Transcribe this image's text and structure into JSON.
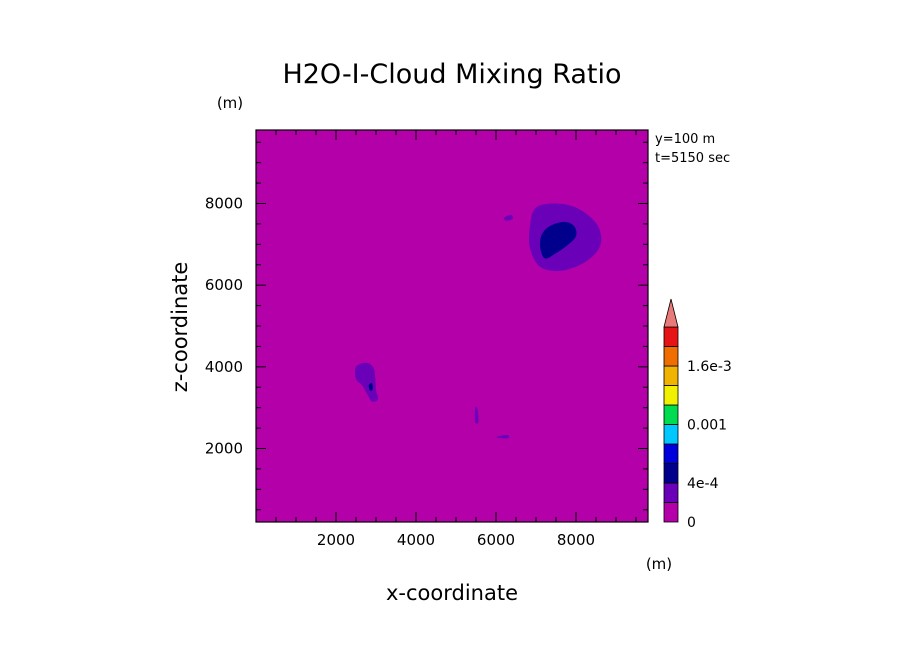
{
  "chart_data": {
    "type": "heatmap",
    "title": "H2O-I-Cloud Mixing Ratio",
    "xlabel": "x-coordinate",
    "ylabel": "z-coordinate",
    "x_unit": "(m)",
    "y_unit": "(m)",
    "annotation_y": "y=100 m",
    "annotation_t": "t=5150 sec",
    "xlim": [
      0,
      9800
    ],
    "ylim": [
      200,
      9800
    ],
    "x_ticks": [
      2000,
      4000,
      6000,
      8000
    ],
    "y_ticks": [
      2000,
      4000,
      6000,
      8000
    ],
    "x_tick_labels": [
      "2000",
      "4000",
      "6000",
      "8000"
    ],
    "y_tick_labels": [
      "2000",
      "4000",
      "6000",
      "8000"
    ],
    "colorbar": {
      "levels": [
        0,
        0.0002,
        0.0004,
        0.0006,
        0.0008,
        0.001,
        0.0012,
        0.0014,
        0.0016,
        0.0018,
        0.002
      ],
      "tick_labels": [
        {
          "value": 0,
          "label": "0"
        },
        {
          "value": 0.0004,
          "label": "4e-4"
        },
        {
          "value": 0.001,
          "label": "0.001"
        },
        {
          "value": 0.0016,
          "label": "1.6e-3"
        }
      ],
      "colors": [
        "#b400a8",
        "#6a00b8",
        "#00008c",
        "#0000dc",
        "#00c8ff",
        "#00dc50",
        "#f0f000",
        "#f0b400",
        "#f06e00",
        "#e61414"
      ],
      "extend_color": "#e87a7a"
    },
    "background_color": "#b400a8",
    "contours": [
      {
        "level": 0.0001,
        "color": "#6a00b8",
        "points": [
          [
            7000,
            7900
          ],
          [
            7550,
            8000
          ],
          [
            8100,
            7850
          ],
          [
            8550,
            7450
          ],
          [
            8600,
            6950
          ],
          [
            8200,
            6550
          ],
          [
            7600,
            6350
          ],
          [
            7100,
            6450
          ],
          [
            6850,
            6900
          ],
          [
            6850,
            7450
          ]
        ]
      },
      {
        "level": 0.0003,
        "color": "#00008c",
        "points": [
          [
            7150,
            7250
          ],
          [
            7350,
            7450
          ],
          [
            7700,
            7550
          ],
          [
            7950,
            7450
          ],
          [
            8000,
            7200
          ],
          [
            7750,
            6950
          ],
          [
            7450,
            6750
          ],
          [
            7250,
            6650
          ],
          [
            7150,
            6750
          ],
          [
            7100,
            7000
          ]
        ]
      },
      {
        "level": 0.0001,
        "color": "#6a00b8",
        "points": [
          [
            2500,
            4000
          ],
          [
            2750,
            4100
          ],
          [
            2950,
            3950
          ],
          [
            3000,
            3450
          ],
          [
            3050,
            3200
          ],
          [
            2900,
            3150
          ],
          [
            2800,
            3300
          ],
          [
            2650,
            3550
          ],
          [
            2500,
            3700
          ]
        ]
      },
      {
        "level": 0.0003,
        "color": "#00008c",
        "points": [
          [
            2820,
            3550
          ],
          [
            2900,
            3600
          ],
          [
            2920,
            3450
          ],
          [
            2850,
            3420
          ]
        ]
      },
      {
        "level": 0.0001,
        "color": "#6a00b8",
        "points": [
          [
            5480,
            3000
          ],
          [
            5540,
            2950
          ],
          [
            5560,
            2650
          ],
          [
            5480,
            2650
          ]
        ]
      },
      {
        "level": 0.0001,
        "color": "#6a00b8",
        "points": [
          [
            6050,
            2300
          ],
          [
            6300,
            2330
          ],
          [
            6300,
            2250
          ],
          [
            6050,
            2260
          ]
        ]
      },
      {
        "level": 0.0001,
        "color": "#6a00b8",
        "points": [
          [
            6200,
            7650
          ],
          [
            6380,
            7720
          ],
          [
            6420,
            7620
          ],
          [
            6250,
            7580
          ]
        ]
      }
    ]
  }
}
